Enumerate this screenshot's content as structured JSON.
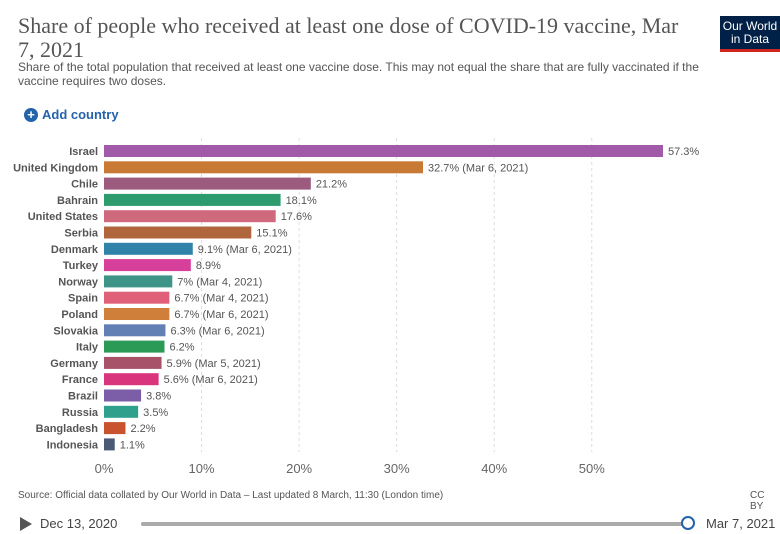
{
  "header": {
    "title": "Share of people who received at least one dose of COVID-19 vaccine, Mar 7, 2021",
    "subtitle": "Share of the total population that received at least one vaccine dose. This may not equal the share that are fully vaccinated if the vaccine requires two doses.",
    "logo_line1": "Our World",
    "logo_line2": "in Data",
    "add_country": "Add country"
  },
  "chart_data": {
    "type": "bar",
    "orientation": "horizontal",
    "xlim": [
      0,
      57.3
    ],
    "x_ticks": [
      "0%",
      "10%",
      "20%",
      "30%",
      "40%",
      "50%"
    ],
    "grid": true,
    "bars": [
      {
        "category": "Israel",
        "value": 57.3,
        "label": "57.3%",
        "color": "#a05aa8"
      },
      {
        "category": "United Kingdom",
        "value": 32.7,
        "label": "32.7% (Mar 6, 2021)",
        "color": "#c87a34"
      },
      {
        "category": "Chile",
        "value": 21.2,
        "label": "21.2%",
        "color": "#9b5a7e"
      },
      {
        "category": "Bahrain",
        "value": 18.1,
        "label": "18.1%",
        "color": "#2e9b6e"
      },
      {
        "category": "United States",
        "value": 17.6,
        "label": "17.6%",
        "color": "#cf6a7c"
      },
      {
        "category": "Serbia",
        "value": 15.1,
        "label": "15.1%",
        "color": "#b0653c"
      },
      {
        "category": "Denmark",
        "value": 9.1,
        "label": "9.1% (Mar 6, 2021)",
        "color": "#2f83a8"
      },
      {
        "category": "Turkey",
        "value": 8.9,
        "label": "8.9%",
        "color": "#d63f9a"
      },
      {
        "category": "Norway",
        "value": 7,
        "label": "7% (Mar 4, 2021)",
        "color": "#3f9488"
      },
      {
        "category": "Spain",
        "value": 6.7,
        "label": "6.7% (Mar 4, 2021)",
        "color": "#e0607a"
      },
      {
        "category": "Poland",
        "value": 6.7,
        "label": "6.7% (Mar 6, 2021)",
        "color": "#d07f3b"
      },
      {
        "category": "Slovakia",
        "value": 6.3,
        "label": "6.3% (Mar 6, 2021)",
        "color": "#6380b5"
      },
      {
        "category": "Italy",
        "value": 6.2,
        "label": "6.2%",
        "color": "#2c9a57"
      },
      {
        "category": "Germany",
        "value": 5.9,
        "label": "5.9% (Mar 5, 2021)",
        "color": "#a8526a"
      },
      {
        "category": "France",
        "value": 5.6,
        "label": "5.6% (Mar 6, 2021)",
        "color": "#d9357c"
      },
      {
        "category": "Brazil",
        "value": 3.8,
        "label": "3.8%",
        "color": "#7b5ea7"
      },
      {
        "category": "Russia",
        "value": 3.5,
        "label": "3.5%",
        "color": "#2fa08c"
      },
      {
        "category": "Bangladesh",
        "value": 2.2,
        "label": "2.2%",
        "color": "#c9532e"
      },
      {
        "category": "Indonesia",
        "value": 1.1,
        "label": "1.1%",
        "color": "#4a5a74"
      }
    ]
  },
  "footer": {
    "source": "Source: Official data collated by Our World in Data – Last updated 8 March, 11:30 (London time)",
    "license": "CC BY"
  },
  "timeline": {
    "start": "Dec 13, 2020",
    "end": "Mar 7, 2021",
    "progress": 1.0
  }
}
